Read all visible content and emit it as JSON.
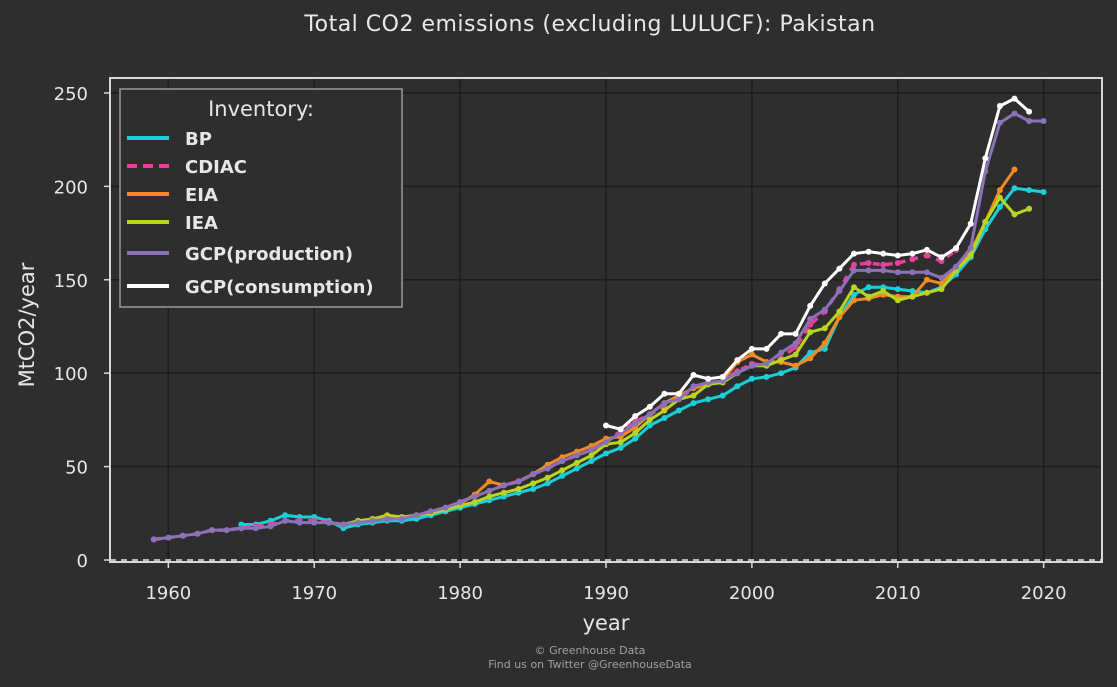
{
  "chart_data": {
    "type": "line",
    "title": "Total CO2 emissions (excluding LULUCF): Pakistan",
    "xlabel": "year",
    "ylabel": "MtCO2/year",
    "xlim": [
      1956,
      2024
    ],
    "ylim": [
      0,
      258
    ],
    "xticks": [
      "1960",
      "1970",
      "1980",
      "1990",
      "2000",
      "2010",
      "2020"
    ],
    "yticks": [
      "0",
      "50",
      "100",
      "150",
      "200",
      "250"
    ],
    "grid": true,
    "legend": {
      "title": "Inventory:",
      "placement": "top-left"
    },
    "series": [
      {
        "name": "BP",
        "color": "#1ad0d8",
        "style": "solid",
        "x": [
          1965,
          1966,
          1967,
          1968,
          1969,
          1970,
          1971,
          1972,
          1973,
          1974,
          1975,
          1976,
          1977,
          1978,
          1979,
          1980,
          1981,
          1982,
          1983,
          1984,
          1985,
          1986,
          1987,
          1988,
          1989,
          1990,
          1991,
          1992,
          1993,
          1994,
          1995,
          1996,
          1997,
          1998,
          1999,
          2000,
          2001,
          2002,
          2003,
          2004,
          2005,
          2006,
          2007,
          2008,
          2009,
          2010,
          2011,
          2012,
          2013,
          2014,
          2015,
          2016,
          2017,
          2018,
          2019,
          2020
        ],
        "y": [
          19,
          19,
          21,
          24,
          23,
          23,
          21,
          17,
          19,
          20,
          21,
          21,
          22,
          24,
          26,
          28,
          30,
          32,
          34,
          36,
          38,
          41,
          45,
          49,
          53,
          57,
          60,
          65,
          72,
          76,
          80,
          84,
          86,
          88,
          93,
          97,
          98,
          100,
          103,
          111,
          113,
          130,
          142,
          146,
          146,
          145,
          144,
          143,
          146,
          153,
          162,
          177,
          189,
          199,
          198,
          197
        ]
      },
      {
        "name": "CDIAC",
        "color": "#e8409a",
        "style": "dashed",
        "x": [
          1959,
          1960,
          1961,
          1962,
          1963,
          1964,
          1965,
          1966,
          1967,
          1968,
          1969,
          1970,
          1971,
          1972,
          1973,
          1974,
          1975,
          1976,
          1977,
          1978,
          1979,
          1980,
          1981,
          1982,
          1983,
          1984,
          1985,
          1986,
          1987,
          1988,
          1989,
          1990,
          1991,
          1992,
          1993,
          1994,
          1995,
          1996,
          1997,
          1998,
          1999,
          2000,
          2001,
          2002,
          2003,
          2004,
          2005,
          2006,
          2007,
          2008,
          2009,
          2010,
          2011,
          2012,
          2013,
          2014
        ],
        "y": [
          11,
          12,
          13,
          14,
          16,
          16,
          17,
          18,
          19,
          21,
          21,
          21,
          20,
          19,
          20,
          21,
          22,
          22,
          24,
          26,
          28,
          31,
          34,
          37,
          40,
          42,
          46,
          49,
          53,
          56,
          59,
          63,
          69,
          74,
          78,
          82,
          86,
          92,
          94,
          96,
          101,
          105,
          104,
          108,
          114,
          126,
          133,
          145,
          158,
          159,
          158,
          159,
          161,
          163,
          160,
          166
        ]
      },
      {
        "name": "EIA",
        "color": "#f28a26",
        "style": "solid",
        "x": [
          1980,
          1981,
          1982,
          1983,
          1984,
          1985,
          1986,
          1987,
          1988,
          1989,
          1990,
          1991,
          1992,
          1993,
          1994,
          1995,
          1996,
          1997,
          1998,
          1999,
          2000,
          2001,
          2002,
          2003,
          2004,
          2005,
          2006,
          2007,
          2008,
          2009,
          2010,
          2011,
          2012,
          2013,
          2014,
          2015,
          2016,
          2017,
          2018
        ],
        "y": [
          30,
          35,
          42,
          40,
          42,
          46,
          51,
          55,
          58,
          61,
          65,
          66,
          71,
          78,
          84,
          88,
          92,
          94,
          96,
          106,
          110,
          106,
          106,
          104,
          108,
          116,
          130,
          139,
          140,
          142,
          141,
          141,
          150,
          148,
          157,
          165,
          181,
          198,
          209
        ]
      },
      {
        "name": "IEA",
        "color": "#b8d61e",
        "style": "solid",
        "x": [
          1971,
          1972,
          1973,
          1974,
          1975,
          1976,
          1977,
          1978,
          1979,
          1980,
          1981,
          1982,
          1983,
          1984,
          1985,
          1986,
          1987,
          1988,
          1989,
          1990,
          1991,
          1992,
          1993,
          1994,
          1995,
          1996,
          1997,
          1998,
          1999,
          2000,
          2001,
          2002,
          2003,
          2004,
          2005,
          2006,
          2007,
          2008,
          2009,
          2010,
          2011,
          2012,
          2013,
          2014,
          2015,
          2016,
          2017,
          2018,
          2019
        ],
        "y": [
          20,
          19,
          21,
          22,
          24,
          23,
          24,
          25,
          27,
          29,
          31,
          34,
          36,
          38,
          41,
          44,
          48,
          52,
          56,
          62,
          63,
          68,
          75,
          80,
          86,
          88,
          94,
          95,
          100,
          104,
          104,
          107,
          110,
          122,
          124,
          133,
          146,
          141,
          144,
          139,
          141,
          143,
          145,
          155,
          163,
          181,
          194,
          185,
          188
        ]
      },
      {
        "name": "GCP(production)",
        "color": "#8a72b8",
        "style": "solid",
        "x": [
          1959,
          1960,
          1961,
          1962,
          1963,
          1964,
          1965,
          1966,
          1967,
          1968,
          1969,
          1970,
          1971,
          1972,
          1973,
          1974,
          1975,
          1976,
          1977,
          1978,
          1979,
          1980,
          1981,
          1982,
          1983,
          1984,
          1985,
          1986,
          1987,
          1988,
          1989,
          1990,
          1991,
          1992,
          1993,
          1994,
          1995,
          1996,
          1997,
          1998,
          1999,
          2000,
          2001,
          2002,
          2003,
          2004,
          2005,
          2006,
          2007,
          2008,
          2009,
          2010,
          2011,
          2012,
          2013,
          2014,
          2015,
          2016,
          2017,
          2018,
          2019,
          2020
        ],
        "y": [
          11,
          12,
          13,
          14,
          16,
          16,
          17,
          17,
          18,
          21,
          20,
          20,
          20,
          19,
          20,
          21,
          22,
          22,
          24,
          26,
          28,
          31,
          34,
          37,
          40,
          42,
          46,
          49,
          53,
          56,
          59,
          63,
          68,
          73,
          78,
          84,
          86,
          93,
          95,
          96,
          100,
          104,
          105,
          111,
          116,
          129,
          134,
          144,
          155,
          155,
          155,
          154,
          154,
          154,
          151,
          157,
          167,
          208,
          234,
          239,
          235,
          235
        ]
      },
      {
        "name": "GCP(consumption)",
        "color": "#ffffff",
        "style": "solid",
        "x": [
          1990,
          1991,
          1992,
          1993,
          1994,
          1995,
          1996,
          1997,
          1998,
          1999,
          2000,
          2001,
          2002,
          2003,
          2004,
          2005,
          2006,
          2007,
          2008,
          2009,
          2010,
          2011,
          2012,
          2013,
          2014,
          2015,
          2016,
          2017,
          2018,
          2019
        ],
        "y": [
          72,
          70,
          77,
          82,
          89,
          89,
          99,
          97,
          98,
          107,
          113,
          113,
          121,
          121,
          136,
          148,
          156,
          164,
          165,
          164,
          163,
          164,
          166,
          162,
          167,
          180,
          215,
          243,
          247,
          240
        ]
      }
    ]
  },
  "footer": {
    "line1": "© Greenhouse Data",
    "line2": "Find us on Twitter @GreenhouseData"
  }
}
